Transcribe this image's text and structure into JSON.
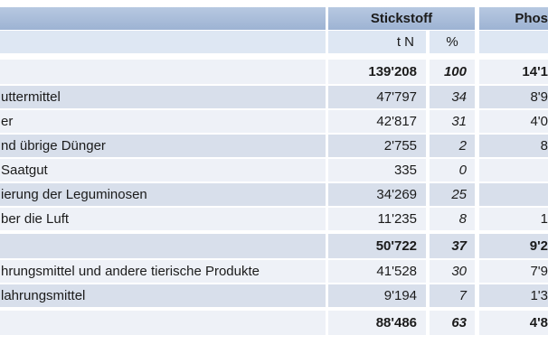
{
  "table": {
    "header": {
      "nitrogen_group": "Stickstoff",
      "phosphorus_group": "Phos",
      "nitrogen_unit": "t N",
      "percent_unit": "%"
    },
    "rows": [
      {
        "label": "",
        "tn": "139'208",
        "pct": "100",
        "tp": "14'1"
      },
      {
        "label": "uttermittel",
        "tn": "47'797",
        "pct": "34",
        "tp": "8'9"
      },
      {
        "label": "er",
        "tn": "42'817",
        "pct": "31",
        "tp": "4'0"
      },
      {
        "label": "nd übrige Dünger",
        "tn": "2'755",
        "pct": "2",
        "tp": "8"
      },
      {
        "label": "Saatgut",
        "tn": "335",
        "pct": "0",
        "tp": ""
      },
      {
        "label": "ierung der Leguminosen",
        "tn": "34'269",
        "pct": "25",
        "tp": ""
      },
      {
        "label": "ber die Luft",
        "tn": "11'235",
        "pct": "8",
        "tp": "1"
      },
      {
        "label": "",
        "tn": "50'722",
        "pct": "37",
        "tp": "9'2"
      },
      {
        "label": "hrungsmittel und andere tierische Produkte",
        "tn": "41'528",
        "pct": "30",
        "tp": "7'9"
      },
      {
        "label": "lahrungsmittel",
        "tn": "9'194",
        "pct": "7",
        "tp": "1'3"
      },
      {
        "label": "",
        "tn": "88'486",
        "pct": "63",
        "tp": "4'8"
      }
    ],
    "colors": {
      "header_blue": "#a7bbd8",
      "subheader_blue": "#dee7f3",
      "stripe_dark": "#d8dfeb",
      "stripe_light": "#eef1f7",
      "text": "#1b1b1b",
      "background": "#ffffff"
    }
  }
}
